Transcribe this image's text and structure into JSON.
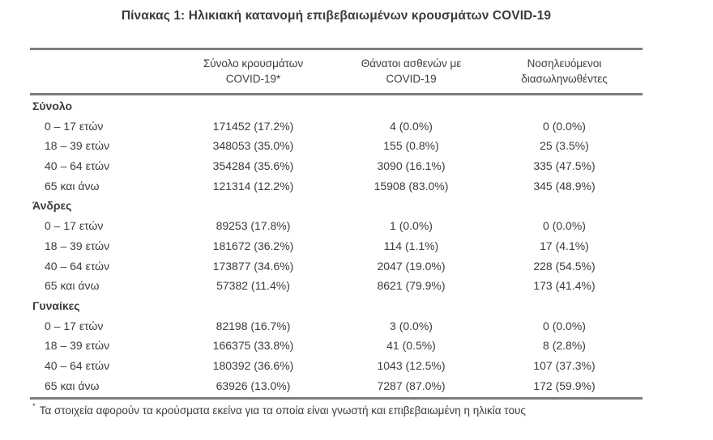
{
  "title": "Πίνακας 1: Ηλικιακή κατανομή επιβεβαιωμένων κρουσμάτων COVID-19",
  "table": {
    "columns": [
      {
        "line1": "Σύνολο κρουσμάτων",
        "line2": "COVID-19*"
      },
      {
        "line1": "Θάνατοι ασθενών με",
        "line2": "COVID-19"
      },
      {
        "line1": "Νοσηλευόμενοι",
        "line2": "διασωληνωθέντες"
      }
    ],
    "sections": [
      {
        "label": "Σύνολο",
        "rows": [
          {
            "age": "0 – 17 ετών",
            "cases": "171452 (17.2%)",
            "deaths": "4 (0.0%)",
            "intubated": "0 (0.0%)"
          },
          {
            "age": "18 – 39 ετών",
            "cases": "348053 (35.0%)",
            "deaths": "155 (0.8%)",
            "intubated": "25 (3.5%)"
          },
          {
            "age": "40 – 64 ετών",
            "cases": "354284 (35.6%)",
            "deaths": "3090 (16.1%)",
            "intubated": "335 (47.5%)"
          },
          {
            "age": "65 και άνω",
            "cases": "121314 (12.2%)",
            "deaths": "15908 (83.0%)",
            "intubated": "345 (48.9%)"
          }
        ]
      },
      {
        "label": "Άνδρες",
        "rows": [
          {
            "age": "0 – 17 ετών",
            "cases": "89253 (17.8%)",
            "deaths": "1 (0.0%)",
            "intubated": "0 (0.0%)"
          },
          {
            "age": "18 – 39 ετών",
            "cases": "181672 (36.2%)",
            "deaths": "114 (1.1%)",
            "intubated": "17 (4.1%)"
          },
          {
            "age": "40 – 64 ετών",
            "cases": "173877 (34.6%)",
            "deaths": "2047 (19.0%)",
            "intubated": "228 (54.5%)"
          },
          {
            "age": "65 και άνω",
            "cases": "57382 (11.4%)",
            "deaths": "8621 (79.9%)",
            "intubated": "173 (41.4%)"
          }
        ]
      },
      {
        "label": "Γυναίκες",
        "rows": [
          {
            "age": "0 – 17 ετών",
            "cases": "82198 (16.7%)",
            "deaths": "3 (0.0%)",
            "intubated": "0 (0.0%)"
          },
          {
            "age": "18 – 39 ετών",
            "cases": "166375 (33.8%)",
            "deaths": "41 (0.5%)",
            "intubated": "8 (2.8%)"
          },
          {
            "age": "40 – 64 ετών",
            "cases": "180392 (36.6%)",
            "deaths": "1043 (12.5%)",
            "intubated": "107 (37.3%)"
          },
          {
            "age": "65 και άνω",
            "cases": "63926 (13.0%)",
            "deaths": "7287 (87.0%)",
            "intubated": "172 (59.9%)"
          }
        ]
      }
    ]
  },
  "footnote": {
    "marker": "*",
    "text": "Τα στοιχεία αφορούν τα κρούσματα εκείνα για τα οποία είναι γνωστή και επιβεβαιωμένη η ηλικία τους"
  }
}
